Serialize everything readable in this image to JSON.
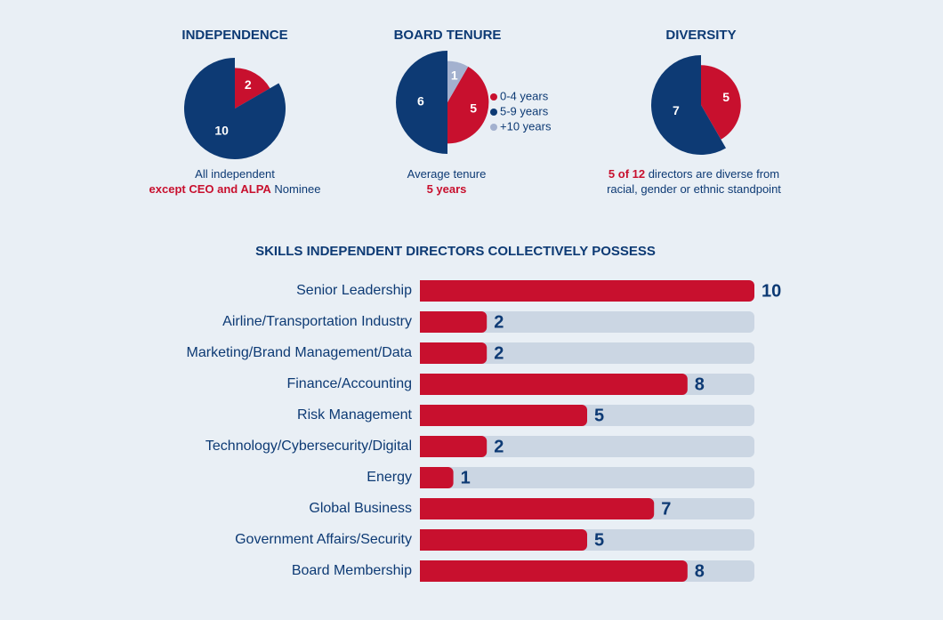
{
  "chart_data": [
    {
      "type": "pie",
      "title": "INDEPENDENCE",
      "values": [
        2,
        10
      ],
      "colors": [
        "#c8102e",
        "#0d3a74"
      ],
      "startangle": 0,
      "caption": [
        [
          {
            "text": "All independent",
            "highlight": false
          }
        ],
        [
          {
            "text": "except CEO and ALPA",
            "highlight": true
          },
          {
            "text": " Nominee",
            "highlight": false
          }
        ]
      ]
    },
    {
      "type": "pie",
      "title": "BOARD TENURE",
      "categories": [
        "0-4 years",
        "5-9 years",
        "+10 years"
      ],
      "values": [
        5,
        6,
        1
      ],
      "colors": [
        "#c8102e",
        "#0d3a74",
        "#a3b1cf"
      ],
      "startangle": 30,
      "caption": [
        [
          {
            "text": "Average tenure",
            "highlight": false
          }
        ],
        [
          {
            "text": "5 years",
            "highlight": true
          }
        ]
      ]
    },
    {
      "type": "pie",
      "title": "DIVERSITY",
      "values": [
        5,
        7
      ],
      "colors": [
        "#c8102e",
        "#0d3a74"
      ],
      "startangle": 0,
      "caption": [
        [
          {
            "text": "5 of 12",
            "highlight": true
          },
          {
            "text": " directors are diverse from",
            "highlight": false
          }
        ],
        [
          {
            "text": "racial, gender or ethnic standpoint",
            "highlight": false
          }
        ]
      ]
    },
    {
      "type": "bar",
      "orientation": "horizontal",
      "title": "SKILLS INDEPENDENT DIRECTORS COLLECTIVELY POSSESS",
      "categories": [
        "Senior Leadership",
        "Airline/Transportation Industry",
        "Marketing/Brand Management/Data",
        "Finance/Accounting",
        "Risk Management",
        "Technology/Cybersecurity/Digital",
        "Energy",
        "Global Business",
        "Government Affairs/Security",
        "Board Membership"
      ],
      "values": [
        10,
        2,
        2,
        8,
        5,
        2,
        1,
        7,
        5,
        8
      ],
      "color": "#c8102e",
      "track_color": "#cbd6e3",
      "xlim": [
        0,
        10
      ]
    }
  ]
}
